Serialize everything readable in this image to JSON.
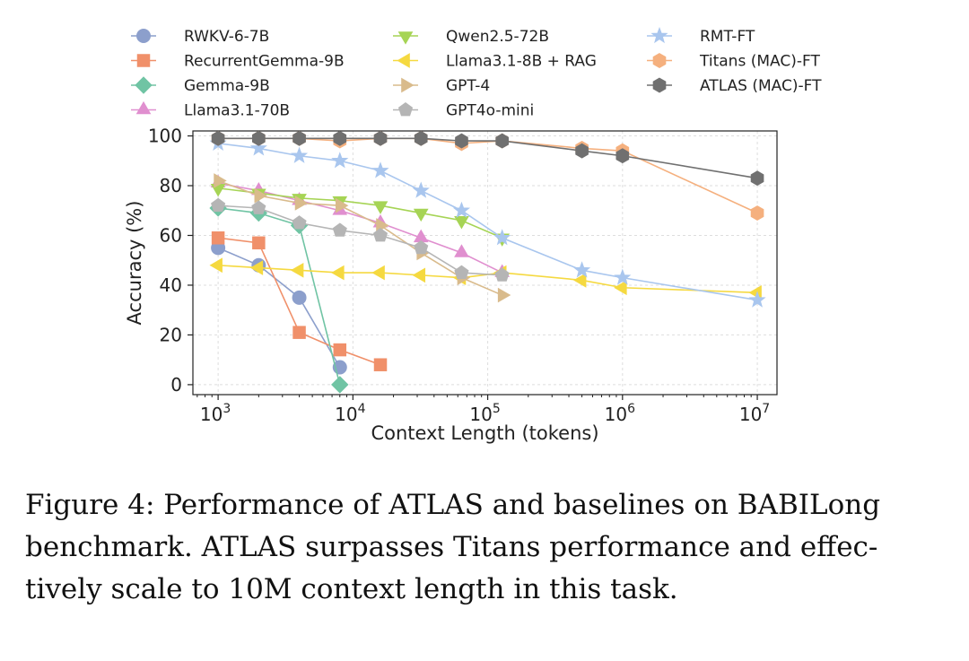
{
  "chart_data": {
    "type": "line",
    "x_scale": "log",
    "xlabel": "Context Length (tokens)",
    "ylabel": "Accuracy (%)",
    "xlim": [
      650,
      14000000
    ],
    "ylim": [
      -4,
      102
    ],
    "x_ticks": [
      {
        "value": 1000,
        "base": "10",
        "exp": "3"
      },
      {
        "value": 10000,
        "base": "10",
        "exp": "4"
      },
      {
        "value": 100000,
        "base": "10",
        "exp": "5"
      },
      {
        "value": 1000000,
        "base": "10",
        "exp": "6"
      },
      {
        "value": 10000000,
        "base": "10",
        "exp": "7"
      }
    ],
    "y_ticks": [
      0,
      20,
      40,
      60,
      80,
      100
    ],
    "grid": true,
    "legend_position": "top",
    "series": [
      {
        "name": "RWKV-6-7B",
        "color": "#8c9fcc",
        "marker": "circle",
        "x": [
          1000,
          2000,
          4000,
          8000
        ],
        "y": [
          55,
          48,
          35,
          7
        ]
      },
      {
        "name": "RecurrentGemma-9B",
        "color": "#f0906a",
        "marker": "square",
        "x": [
          1000,
          2000,
          4000,
          8000,
          16000
        ],
        "y": [
          59,
          57,
          21,
          14,
          8
        ]
      },
      {
        "name": "Gemma-9B",
        "color": "#70c4a4",
        "marker": "diamond",
        "x": [
          1000,
          2000,
          4000,
          8000
        ],
        "y": [
          71,
          69,
          64,
          0
        ]
      },
      {
        "name": "Llama3.1-70B",
        "color": "#e08fcf",
        "marker": "triangle-up",
        "x": [
          1000,
          2000,
          4000,
          8000,
          16000,
          32000,
          64000,
          128000
        ],
        "y": [
          81,
          78,
          74,
          70,
          65,
          59,
          53,
          45
        ]
      },
      {
        "name": "Qwen2.5-72B",
        "color": "#a6d455",
        "marker": "triangle-down",
        "x": [
          1000,
          2000,
          4000,
          8000,
          16000,
          32000,
          64000,
          128000
        ],
        "y": [
          79,
          77,
          75,
          74,
          72,
          69,
          66,
          59
        ]
      },
      {
        "name": "Llama3.1-8B + RAG",
        "color": "#f5d940",
        "marker": "triangle-left",
        "x": [
          1000,
          2000,
          4000,
          8000,
          16000,
          32000,
          64000,
          128000,
          500000,
          1000000,
          10000000
        ],
        "y": [
          48,
          47,
          46,
          45,
          45,
          44,
          43,
          45,
          42,
          39,
          37
        ]
      },
      {
        "name": "GPT-4",
        "color": "#d9bb8c",
        "marker": "triangle-right",
        "x": [
          1000,
          2000,
          4000,
          8000,
          16000,
          32000,
          64000,
          128000
        ],
        "y": [
          82,
          76,
          73,
          72,
          64,
          53,
          43,
          36
        ]
      },
      {
        "name": "GPT4o-mini",
        "color": "#b5b5b5",
        "marker": "pentagon",
        "x": [
          1000,
          2000,
          4000,
          8000,
          16000,
          32000,
          64000,
          128000
        ],
        "y": [
          72,
          71,
          65,
          62,
          60,
          55,
          45,
          44
        ]
      },
      {
        "name": "RMT-FT",
        "color": "#a9c6ee",
        "marker": "star",
        "x": [
          1000,
          2000,
          4000,
          8000,
          16000,
          32000,
          64000,
          128000,
          500000,
          1000000,
          10000000
        ],
        "y": [
          97,
          95,
          92,
          90,
          86,
          78,
          70,
          59,
          46,
          43,
          34
        ]
      },
      {
        "name": "Titans (MAC)-FT",
        "color": "#f5b07e",
        "marker": "hexagon",
        "x": [
          1000,
          2000,
          4000,
          8000,
          16000,
          32000,
          64000,
          128000,
          500000,
          1000000,
          10000000
        ],
        "y": [
          99,
          99,
          99,
          98,
          99,
          99,
          97,
          98,
          95,
          94,
          69
        ]
      },
      {
        "name": "ATLAS (MAC)-FT",
        "color": "#707070",
        "marker": "hexagon",
        "x": [
          1000,
          2000,
          4000,
          8000,
          16000,
          32000,
          64000,
          128000,
          500000,
          1000000,
          10000000
        ],
        "y": [
          99,
          99,
          99,
          99,
          99,
          99,
          98,
          98,
          94,
          92,
          83
        ]
      }
    ]
  },
  "caption": {
    "line1": "Figure 4: Performance of ATLAS and baselines on BABILong",
    "line2": "benchmark. ATLAS surpasses Titans performance and effec-",
    "line3": "tively scale to 10M context length in this task."
  }
}
